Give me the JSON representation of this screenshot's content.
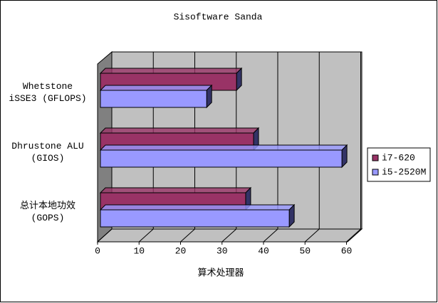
{
  "chart_data": {
    "type": "bar3d",
    "title": "Sisoftware Sanda",
    "x_label": "算术处理器",
    "categories": [
      "Whetstone\niSSE3 (GFLOPS)",
      "Dhrustone ALU\n(GIOS)",
      "总计本地功效\n(GOPS)"
    ],
    "series": [
      {
        "name": "i7-620",
        "color": "#993366",
        "values": [
          33.5,
          37.6,
          35.7
        ]
      },
      {
        "name": "i5-2520M",
        "color": "#9999FF",
        "values": [
          26.3,
          58.9,
          46.2
        ]
      }
    ],
    "xlim": [
      0,
      60
    ],
    "xticks": [
      0,
      10,
      20,
      30,
      40,
      50,
      60
    ],
    "grid": true,
    "legend": "right"
  }
}
